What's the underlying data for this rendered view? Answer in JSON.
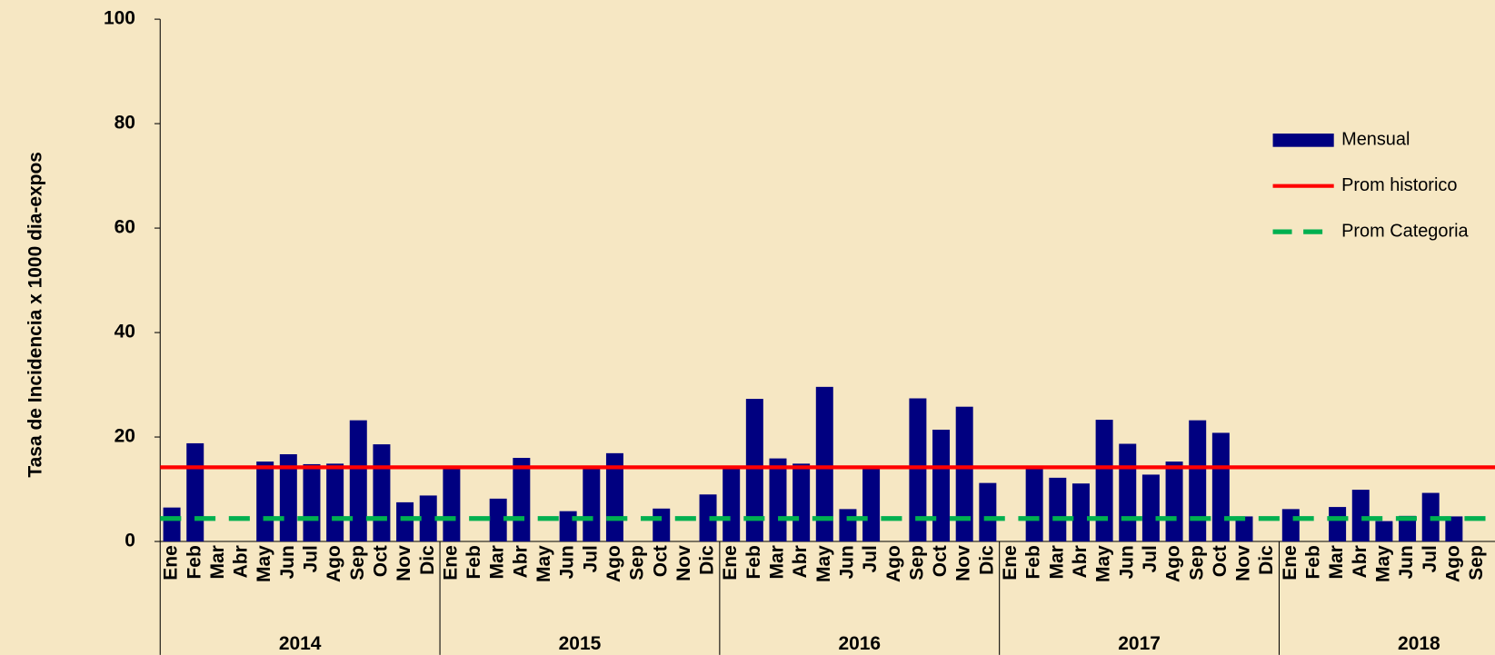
{
  "chart_data": {
    "type": "bar",
    "y_label": "Tasa de Incidencia x 1000 dia-expos",
    "categories": [
      "Ene",
      "Feb",
      "Mar",
      "Abr",
      "May",
      "Jun",
      "Jul",
      "Ago",
      "Sep",
      "Oct",
      "Nov",
      "Dic",
      "Ene",
      "Feb",
      "Mar",
      "Abr",
      "May",
      "Jun",
      "Jul",
      "Ago",
      "Sep",
      "Oct",
      "Nov",
      "Dic",
      "Ene",
      "Feb",
      "Mar",
      "Abr",
      "May",
      "Jun",
      "Jul",
      "Ago",
      "Sep",
      "Oct",
      "Nov",
      "Dic",
      "Ene",
      "Feb",
      "Mar",
      "Abr",
      "May",
      "Jun",
      "Jul",
      "Ago",
      "Sep",
      "Oct",
      "Nov",
      "Dic",
      "Ene",
      "Feb",
      "Mar",
      "Abr",
      "May",
      "Jun",
      "Jul",
      "Ago",
      "Sep"
    ],
    "year_groups": [
      "2014",
      "2015",
      "2016",
      "2017",
      "2018"
    ],
    "series": [
      {
        "name": "Mensual",
        "color": "#000080",
        "values": [
          6.5,
          18.8,
          0,
          0,
          15.3,
          16.7,
          14.8,
          14.9,
          23.2,
          18.6,
          7.5,
          8.8,
          14.3,
          0,
          8.2,
          16.0,
          0,
          5.8,
          14.5,
          16.9,
          0,
          6.3,
          0,
          9.0,
          14.2,
          27.3,
          15.9,
          14.9,
          29.6,
          6.2,
          14.3,
          0,
          27.4,
          21.4,
          25.8,
          11.2,
          0,
          14.5,
          12.2,
          11.1,
          23.3,
          18.7,
          12.8,
          15.3,
          23.2,
          20.8,
          4.8,
          0,
          6.2,
          0,
          6.6,
          9.9,
          3.9,
          4.9,
          9.3,
          4.8,
          0
        ]
      }
    ],
    "reference_lines": [
      {
        "name": "Prom historico",
        "color": "#ff0000",
        "value": 14.2,
        "dashed": false
      },
      {
        "name": "Prom Categoria",
        "color": "#00b050",
        "value": 4.4,
        "dashed": true
      }
    ],
    "ylim": [
      0,
      100
    ],
    "yticks": [
      0,
      20,
      40,
      60,
      80,
      100
    ]
  }
}
